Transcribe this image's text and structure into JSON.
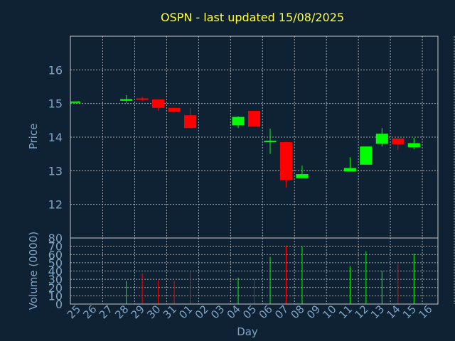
{
  "chart_data": {
    "type": "candlestick",
    "title": "OSPN - last updated 15/08/2025",
    "xlabel": "Day",
    "price_panel": {
      "ylabel": "Price",
      "ylim": [
        11,
        17
      ],
      "yticks": [
        12,
        13,
        14,
        15,
        16
      ],
      "grid": true
    },
    "volume_panel": {
      "ylabel": "Volume (0000)",
      "ylim": [
        0,
        80
      ],
      "yticks": [
        0,
        10,
        20,
        30,
        40,
        50,
        60,
        70,
        80
      ],
      "grid": true
    },
    "x_tick_labels": [
      "25",
      "26",
      "27",
      "28",
      "29",
      "30",
      "31",
      "01",
      "02",
      "03",
      "04",
      "05",
      "06",
      "07",
      "08",
      "09",
      "10",
      "11",
      "12",
      "13",
      "14",
      "15",
      "16"
    ],
    "candles": [
      {
        "day": "25",
        "open": 15.04,
        "close": 15.06,
        "high": 15.07,
        "low": 15.03,
        "volume": null
      },
      {
        "day": "28",
        "open": 15.08,
        "close": 15.13,
        "high": 15.25,
        "low": 15.02,
        "volume": 28
      },
      {
        "day": "29",
        "open": 15.15,
        "close": 15.12,
        "high": 15.2,
        "low": 15.07,
        "volume": 37
      },
      {
        "day": "30",
        "open": 15.12,
        "close": 14.87,
        "high": 15.12,
        "low": 14.78,
        "volume": 29
      },
      {
        "day": "31",
        "open": 14.87,
        "close": 14.75,
        "high": 14.87,
        "low": 14.73,
        "volume": 28
      },
      {
        "day": "01",
        "open": 14.65,
        "close": 14.27,
        "high": 14.87,
        "low": 14.27,
        "volume": 39
      },
      {
        "day": "04",
        "open": 14.35,
        "close": 14.6,
        "high": 14.62,
        "low": 14.27,
        "volume": 32
      },
      {
        "day": "05",
        "open": 14.78,
        "close": 14.31,
        "high": 14.78,
        "low": 14.31,
        "volume": 30
      },
      {
        "day": "06",
        "open": 13.86,
        "close": 13.89,
        "high": 14.25,
        "low": 13.5,
        "volume": 57
      },
      {
        "day": "07",
        "open": 13.85,
        "close": 12.72,
        "high": 13.86,
        "low": 12.5,
        "volume": 71
      },
      {
        "day": "08",
        "open": 12.78,
        "close": 12.9,
        "high": 13.15,
        "low": 12.78,
        "volume": 70
      },
      {
        "day": "11",
        "open": 12.98,
        "close": 13.08,
        "high": 13.4,
        "low": 12.98,
        "volume": 46
      },
      {
        "day": "12",
        "open": 13.18,
        "close": 13.72,
        "high": 13.72,
        "low": 13.18,
        "volume": 64
      },
      {
        "day": "13",
        "open": 13.8,
        "close": 14.1,
        "high": 14.27,
        "low": 13.72,
        "volume": 40
      },
      {
        "day": "14",
        "open": 13.96,
        "close": 13.79,
        "high": 13.96,
        "low": 13.62,
        "volume": 48
      },
      {
        "day": "15",
        "open": 13.7,
        "close": 13.82,
        "high": 13.98,
        "low": 13.64,
        "volume": 61
      }
    ],
    "colors": {
      "background": "#0f2233",
      "panel_border": "#c8c8c8",
      "grid": "#c8c8c8",
      "up": "#00ff00",
      "down": "#ff0000",
      "title": "#ffff33",
      "axis_text": "#7fa3c4"
    }
  }
}
